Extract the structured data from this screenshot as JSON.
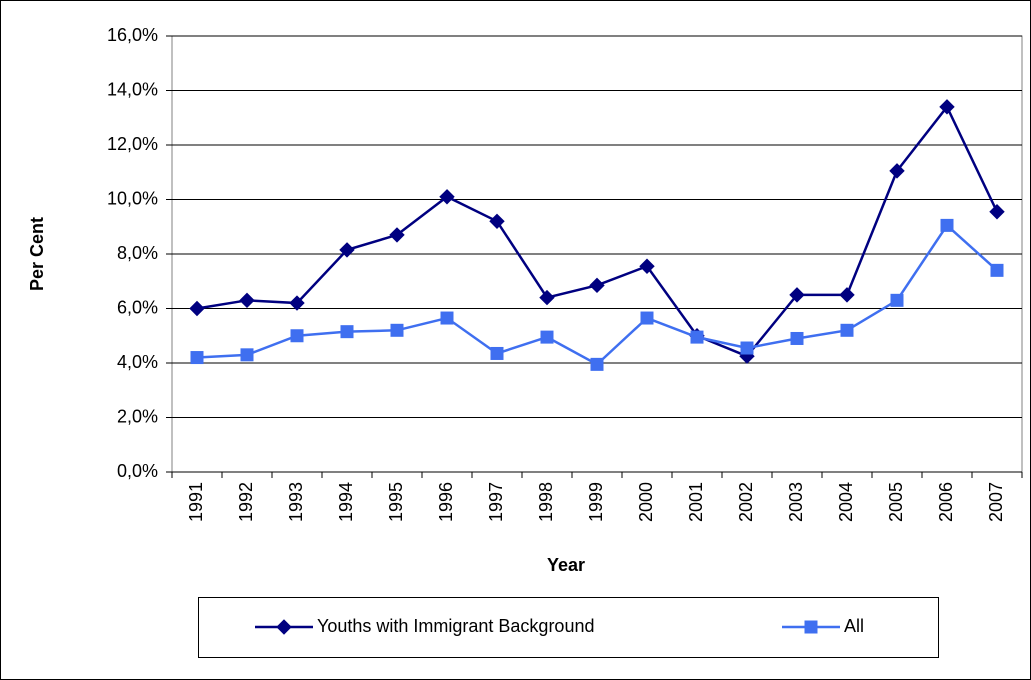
{
  "chart_data": {
    "type": "line",
    "x_label": "Year",
    "y_label": "Per Cent",
    "categories": [
      "1991",
      "1992",
      "1993",
      "1994",
      "1995",
      "1996",
      "1997",
      "1998",
      "1999",
      "2000",
      "2001",
      "2002",
      "2003",
      "2004",
      "2005",
      "2006",
      "2007"
    ],
    "series": [
      {
        "name": "Youths with Immigrant Background",
        "color": "#000080",
        "marker": "diamond",
        "values": [
          6.0,
          6.3,
          6.2,
          8.15,
          8.7,
          10.1,
          9.2,
          6.4,
          6.85,
          7.55,
          5.0,
          4.25,
          6.5,
          6.5,
          11.05,
          13.4,
          9.55
        ]
      },
      {
        "name": "All",
        "color": "#3f6ff0",
        "marker": "square",
        "values": [
          4.2,
          4.3,
          5.0,
          5.15,
          5.2,
          5.65,
          4.35,
          4.95,
          3.95,
          5.65,
          4.95,
          4.55,
          4.9,
          5.2,
          6.3,
          9.05,
          7.4
        ]
      }
    ],
    "ylim": [
      0,
      16
    ],
    "yticks": [
      {
        "value": 0,
        "label": "0,0%"
      },
      {
        "value": 2,
        "label": "2,0%"
      },
      {
        "value": 4,
        "label": "4,0%"
      },
      {
        "value": 6,
        "label": "6,0%"
      },
      {
        "value": 8,
        "label": "8,0%"
      },
      {
        "value": 10,
        "label": "10,0%"
      },
      {
        "value": 12,
        "label": "12,0%"
      },
      {
        "value": 14,
        "label": "14,0%"
      },
      {
        "value": 16,
        "label": "16,0%"
      }
    ],
    "grid": true
  }
}
